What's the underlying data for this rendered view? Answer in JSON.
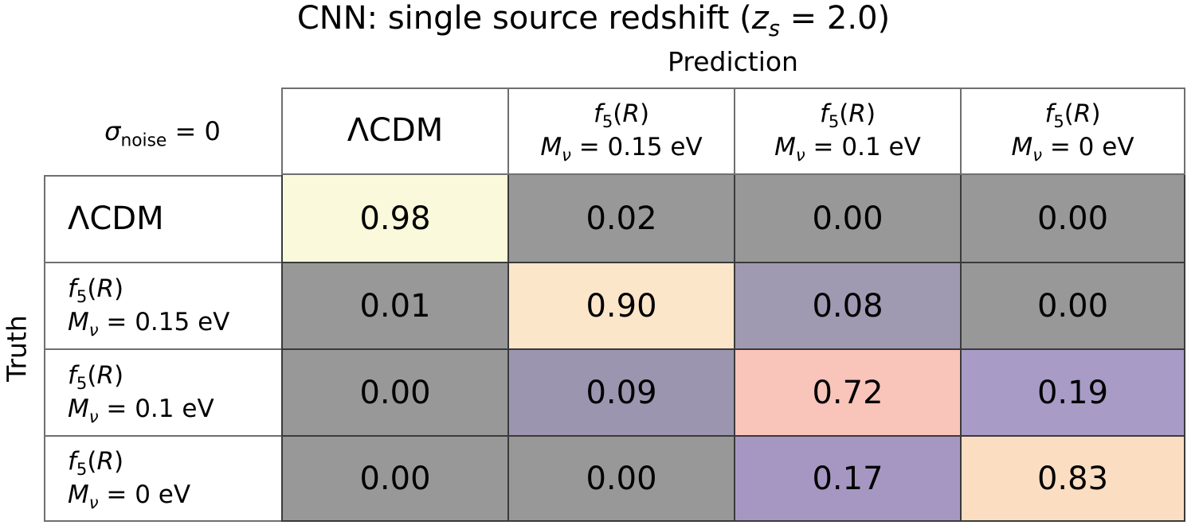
{
  "title": {
    "text_before": "CNN: single source redshift (",
    "z": "z",
    "z_sub": "s",
    "text_after": " = 2.0)"
  },
  "prediction_label": "Prediction",
  "truth_label": "Truth",
  "corner": {
    "sigma": "σ",
    "sigma_sub": "noise",
    "rest": " = 0"
  },
  "glyphs": {
    "f": "f",
    "five": "5",
    "lparen": "(",
    "R": "R",
    "rparen": ")",
    "M": "M",
    "nu": "ν"
  },
  "headers": {
    "col0": {
      "label": "ΛCDM"
    },
    "col1": {
      "mass": " = 0.15 eV"
    },
    "col2": {
      "mass": " = 0.1 eV"
    },
    "col3": {
      "mass": " = 0 eV"
    }
  },
  "row_labels": {
    "row0": {
      "label": "ΛCDM"
    },
    "row1": {
      "mass": " = 0.15 eV"
    },
    "row2": {
      "mass": " = 0.1 eV"
    },
    "row3": {
      "mass": " = 0 eV"
    }
  },
  "matrix": {
    "rows": [
      {
        "values": [
          "0.98",
          "0.02",
          "0.00",
          "0.00"
        ],
        "bg": [
          "#FAF9DC",
          "#989898",
          "#989898",
          "#989898"
        ]
      },
      {
        "values": [
          "0.01",
          "0.90",
          "0.08",
          "0.00"
        ],
        "bg": [
          "#989898",
          "#FCE6CA",
          "#A099B2",
          "#989898"
        ]
      },
      {
        "values": [
          "0.00",
          "0.09",
          "0.72",
          "0.19"
        ],
        "bg": [
          "#989898",
          "#9C95AF",
          "#F9C4BA",
          "#A89BC6"
        ]
      },
      {
        "values": [
          "0.00",
          "0.00",
          "0.17",
          "0.83"
        ],
        "bg": [
          "#989898",
          "#989898",
          "#A697C2",
          "#FBDDC1"
        ]
      }
    ]
  },
  "style_colors": {
    "header_border": "#6F6F6F",
    "data_border": "#3A3A3A",
    "background": "#FFFFFF",
    "text": "#000000",
    "low_value_gray": "#989898",
    "diag_high_yellow": "#FAF9DC"
  },
  "chart_data": {
    "type": "heatmap",
    "title": "CNN: single source redshift (z_s = 2.0)",
    "xlabel": "Prediction",
    "ylabel": "Truth",
    "annotation": "σ_noise = 0",
    "categories": [
      "ΛCDM",
      "f_5(R) M_ν = 0.15 eV",
      "f_5(R) M_ν = 0.1 eV",
      "f_5(R) M_ν = 0 eV"
    ],
    "rows": [
      [
        0.98,
        0.02,
        0.0,
        0.0
      ],
      [
        0.01,
        0.9,
        0.08,
        0.0
      ],
      [
        0.0,
        0.09,
        0.72,
        0.19
      ],
      [
        0.0,
        0.0,
        0.17,
        0.83
      ]
    ],
    "value_range": [
      0,
      1
    ],
    "legend": "none",
    "grid": "table-borders"
  }
}
